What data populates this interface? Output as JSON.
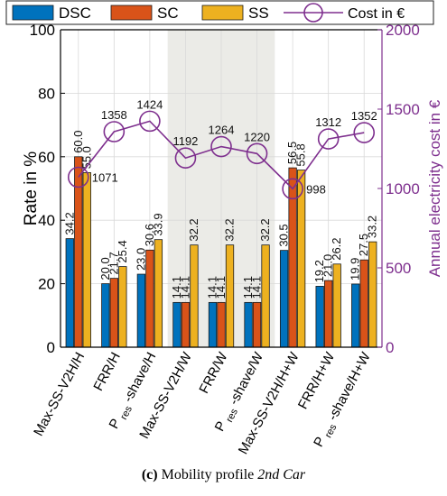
{
  "chart_data": {
    "type": "bar",
    "categories": [
      "Max-SS-V2H/H",
      "FRR/H",
      "P res -shave/H",
      "Max-SS-V2H/W",
      "FRR/W",
      "P res -shave/W",
      "Max-SS-V2H/H+W",
      "FRR/H+W",
      "P res -shave/H+W"
    ],
    "category_labels": [
      {
        "main": "Max-SS-V2H/H"
      },
      {
        "main": "FRR/H"
      },
      {
        "pre": "P",
        "sub": "res",
        "post": "-shave/H"
      },
      {
        "main": "Max-SS-V2H/W"
      },
      {
        "main": "FRR/W"
      },
      {
        "pre": "P",
        "sub": "res",
        "post": "-shave/W"
      },
      {
        "main": "Max-SS-V2H/H+W"
      },
      {
        "main": "FRR/H+W"
      },
      {
        "pre": "P",
        "sub": "res",
        "post": "-shave/H+W"
      }
    ],
    "series": [
      {
        "name": "DSC",
        "color": "#0072BD",
        "values": [
          34.2,
          20.0,
          23.0,
          14.1,
          14.1,
          14.1,
          30.5,
          19.2,
          19.9
        ]
      },
      {
        "name": "SC",
        "color": "#D95319",
        "values": [
          60.0,
          21.7,
          30.6,
          14.1,
          14.1,
          14.1,
          56.5,
          21.0,
          27.5
        ]
      },
      {
        "name": "SS",
        "color": "#EDB120",
        "values": [
          55.0,
          25.4,
          33.9,
          32.2,
          32.2,
          32.2,
          55.8,
          26.2,
          33.2
        ]
      }
    ],
    "line_series": {
      "name": "Cost in €",
      "color": "#7E2F8E",
      "values": [
        1071,
        1358,
        1424,
        1192,
        1264,
        1220,
        998,
        1312,
        1352
      ]
    },
    "ylabel": "Rate in %",
    "y2label": "Annual electricity cost in €",
    "ylim": [
      0,
      100
    ],
    "y2lim": [
      0,
      2000
    ],
    "yticks": [
      "0",
      "20",
      "40",
      "60",
      "80",
      "100"
    ],
    "y2ticks": [
      "0",
      "500",
      "1000",
      "1500",
      "2000"
    ],
    "shaded_categories": [
      3,
      5
    ],
    "grid": true,
    "legend": "top"
  },
  "caption": {
    "label": "(c)",
    "text": "Mobility profile",
    "italic": "2nd Car"
  }
}
